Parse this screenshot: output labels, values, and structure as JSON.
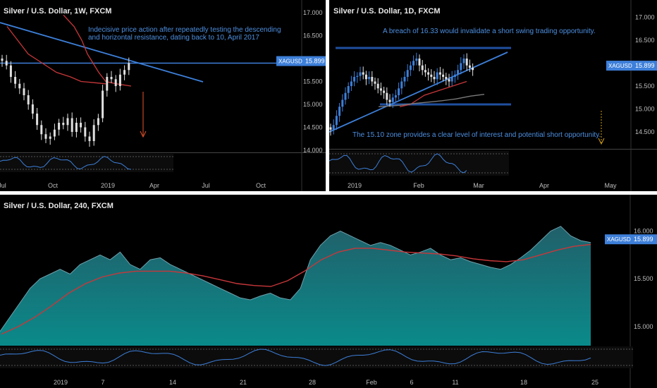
{
  "chart_data": [
    {
      "type": "candlestick",
      "title": "Silver / U.S. Dollar, 1W, FXCM",
      "x_ticks": [
        "Jul",
        "Oct",
        "2019",
        "Apr",
        "Jul",
        "Oct"
      ],
      "y_ticks": [
        "17.000",
        "16.500",
        "15.900",
        "15.500",
        "15.000",
        "14.500",
        "14.000"
      ],
      "ylim": [
        14.0,
        17.0
      ],
      "closes": [
        15.95,
        15.85,
        15.6,
        15.45,
        15.35,
        15.2,
        15.0,
        14.8,
        14.55,
        14.35,
        14.25,
        14.3,
        14.45,
        14.6,
        14.55,
        14.7,
        14.4,
        14.6,
        14.5,
        14.3,
        14.2,
        14.55,
        14.7,
        15.3,
        15.6,
        15.55,
        15.4,
        15.65,
        15.75,
        15.9
      ],
      "moving_average": [
        16.95,
        16.7,
        16.4,
        16.1,
        15.9,
        15.7,
        15.5,
        15.45,
        15.4
      ],
      "resistance_level": 15.9,
      "price_label": {
        "symbol": "XAGUSD",
        "value": "15.899"
      },
      "annotation": [
        "Indecisive price action after repeatedly testing the descending",
        "and horizontal resistance, dating back to 10, April 2017"
      ],
      "colors": {
        "candles": "#e0e0e0",
        "line": "#3d7fd9",
        "ma": "#c8373a",
        "arrow": "#e8542a",
        "label": "#3d7fd9"
      }
    },
    {
      "type": "candlestick",
      "title": "Silver / U.S. Dollar, 1D, FXCM",
      "x_ticks": [
        "2019",
        "Feb",
        "Mar",
        "Apr",
        "May"
      ],
      "y_ticks": [
        "17.000",
        "16.500",
        "15.900",
        "15.500",
        "15.000",
        "14.500"
      ],
      "ylim": [
        14.3,
        17.1
      ],
      "closes": [
        14.55,
        14.65,
        14.85,
        15.05,
        15.2,
        15.35,
        15.5,
        15.6,
        15.7,
        15.72,
        15.8,
        15.75,
        15.65,
        15.7,
        15.6,
        15.55,
        15.45,
        15.4,
        15.35,
        15.2,
        15.15,
        15.25,
        15.3,
        15.45,
        15.6,
        15.7,
        15.85,
        15.95,
        16.05,
        16.1,
        15.95,
        15.85,
        15.8,
        15.75,
        15.7,
        15.65,
        15.8,
        15.75,
        15.7,
        15.65,
        15.6,
        15.7,
        15.75,
        15.85,
        16.0,
        16.1,
        15.95,
        15.9,
        15.85
      ],
      "ma_short": [
        15.05,
        15.1,
        15.2,
        15.3,
        15.35,
        15.4,
        15.45,
        15.5,
        15.55,
        15.6
      ],
      "ma_long": [
        15.05,
        15.08,
        15.12,
        15.15,
        15.18,
        15.22,
        15.28,
        15.32
      ],
      "resistance_level": 16.33,
      "support_level": 15.1,
      "price_label": {
        "symbol": "XAGUSD",
        "value": "15.899"
      },
      "annotations": [
        "A breach of 16.33 would invalidate a short swing trading opportunity.",
        "The 15.10 zone provides a clear level of interest and potential short opportunity."
      ],
      "colors": {
        "candles": "#e0e0e0",
        "bullish": "#3d7fd9",
        "line": "#3d7fd9",
        "levels": "#1f4fa0",
        "ma_short": "#c8373a",
        "ma_long": "#7a7a7a",
        "arrow": "#d4a017",
        "label": "#3d7fd9"
      }
    },
    {
      "type": "area",
      "title": "Silver / U.S. Dollar, 240, FXCM",
      "x_ticks": [
        "2019",
        "7",
        "14",
        "21",
        "28",
        "Feb",
        "6",
        "11",
        "18",
        "25"
      ],
      "y_ticks": [
        "16.000",
        "15.500",
        "15.000"
      ],
      "ylim": [
        14.8,
        16.1
      ],
      "values": [
        14.95,
        15.1,
        15.25,
        15.4,
        15.5,
        15.55,
        15.6,
        15.55,
        15.65,
        15.7,
        15.75,
        15.7,
        15.78,
        15.65,
        15.6,
        15.7,
        15.72,
        15.65,
        15.6,
        15.55,
        15.5,
        15.45,
        15.4,
        15.35,
        15.3,
        15.28,
        15.32,
        15.35,
        15.3,
        15.28,
        15.4,
        15.7,
        15.85,
        15.95,
        16.0,
        15.95,
        15.9,
        15.85,
        15.88,
        15.85,
        15.8,
        15.75,
        15.78,
        15.82,
        15.75,
        15.7,
        15.72,
        15.68,
        15.65,
        15.62,
        15.6,
        15.65,
        15.72,
        15.8,
        15.9,
        16.0,
        16.05,
        15.95,
        15.9,
        15.88
      ],
      "ma": [
        14.92,
        15.0,
        15.1,
        15.22,
        15.35,
        15.45,
        15.52,
        15.56,
        15.58,
        15.58,
        15.58,
        15.56,
        15.53,
        15.49,
        15.45,
        15.43,
        15.42,
        15.48,
        15.58,
        15.7,
        15.78,
        15.82,
        15.82,
        15.8,
        15.78,
        15.77,
        15.76,
        15.74,
        15.71,
        15.69,
        15.68,
        15.7,
        15.75,
        15.8,
        15.84,
        15.86
      ],
      "price_label": {
        "symbol": "XAGUSD",
        "value": "15.899"
      },
      "colors": {
        "area_top": "#21606a",
        "area_bottom": "#0a8a8a",
        "line": "#6fa0ac",
        "ma": "#c8373a",
        "label": "#3d7fd9"
      }
    }
  ]
}
